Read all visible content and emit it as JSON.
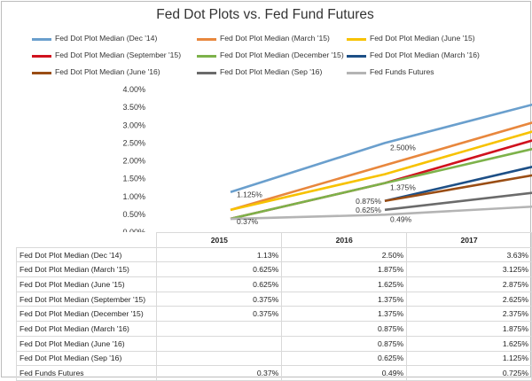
{
  "chart_data": {
    "type": "line",
    "title": "Fed Dot Plots vs. Fed Fund Futures",
    "categories": [
      "2015",
      "2016",
      "2017"
    ],
    "ylim": [
      0,
      0.04
    ],
    "yticks": [
      "0.00%",
      "0.50%",
      "1.00%",
      "1.50%",
      "2.00%",
      "2.50%",
      "3.00%",
      "3.50%",
      "4.00%"
    ],
    "grid": false,
    "legend_position": "top",
    "series": [
      {
        "name": "Fed Dot Plot Median (Dec '14)",
        "color": "#6a9fcd",
        "values": [
          0.01125,
          0.025,
          0.03625
        ],
        "table": [
          "1.13%",
          "2.50%",
          "3.63%"
        ]
      },
      {
        "name": "Fed Dot Plot Median (March '15)",
        "color": "#e8873d",
        "values": [
          0.00625,
          0.01875,
          0.03125
        ],
        "table": [
          "0.625%",
          "1.875%",
          "3.125%"
        ]
      },
      {
        "name": "Fed Dot Plot Median (June '15)",
        "color": "#f7c200",
        "values": [
          0.00625,
          0.01625,
          0.02875
        ],
        "table": [
          "0.625%",
          "1.625%",
          "2.875%"
        ]
      },
      {
        "name": "Fed Dot Plot Median (September '15)",
        "color": "#d0121e",
        "values": [
          0.00375,
          0.01375,
          0.02625
        ],
        "table": [
          "0.375%",
          "1.375%",
          "2.625%"
        ]
      },
      {
        "name": "Fed Dot Plot Median (December '15)",
        "color": "#7db24a",
        "values": [
          0.00375,
          0.01375,
          0.02375
        ],
        "table": [
          "0.375%",
          "1.375%",
          "2.375%"
        ]
      },
      {
        "name": "Fed Dot Plot Median (March '16)",
        "color": "#1d4f86",
        "values": [
          null,
          0.00875,
          0.01875
        ],
        "table": [
          "",
          "0.875%",
          "1.875%"
        ]
      },
      {
        "name": "Fed Dot Plot Median (June '16)",
        "color": "#9a4d14",
        "values": [
          null,
          0.00875,
          0.01625
        ],
        "table": [
          "",
          "0.875%",
          "1.625%"
        ]
      },
      {
        "name": "Fed Dot Plot Median (Sep '16)",
        "color": "#6b6b6b",
        "values": [
          null,
          0.00625,
          0.01125
        ],
        "table": [
          "",
          "0.625%",
          "1.125%"
        ]
      },
      {
        "name": "Fed Funds Futures",
        "color": "#b4b4b4",
        "values": [
          0.0037,
          0.0049,
          0.00725
        ],
        "table": [
          "0.37%",
          "0.49%",
          "0.725%"
        ]
      }
    ],
    "data_labels": [
      {
        "series": 0,
        "point": 0,
        "text": "1.125%"
      },
      {
        "series": 0,
        "point": 1,
        "text": "2.500%"
      },
      {
        "series": 0,
        "point": 2,
        "text": "3.625%"
      },
      {
        "series": 4,
        "point": 1,
        "text": "1.375%"
      },
      {
        "series": 4,
        "point": 2,
        "text": "2.375%"
      },
      {
        "series": 5,
        "point": 1,
        "text": "0.875%"
      },
      {
        "series": 5,
        "point": 2,
        "text": "1.875%"
      },
      {
        "series": 6,
        "point": 2,
        "text": "1.625%"
      },
      {
        "series": 7,
        "point": 1,
        "text": "0.625%"
      },
      {
        "series": 7,
        "point": 2,
        "text": "1.125%"
      },
      {
        "series": 8,
        "point": 0,
        "text": "0.37%"
      },
      {
        "series": 8,
        "point": 1,
        "text": "0.49%"
      },
      {
        "series": 8,
        "point": 2,
        "text": "0.725%"
      }
    ]
  }
}
